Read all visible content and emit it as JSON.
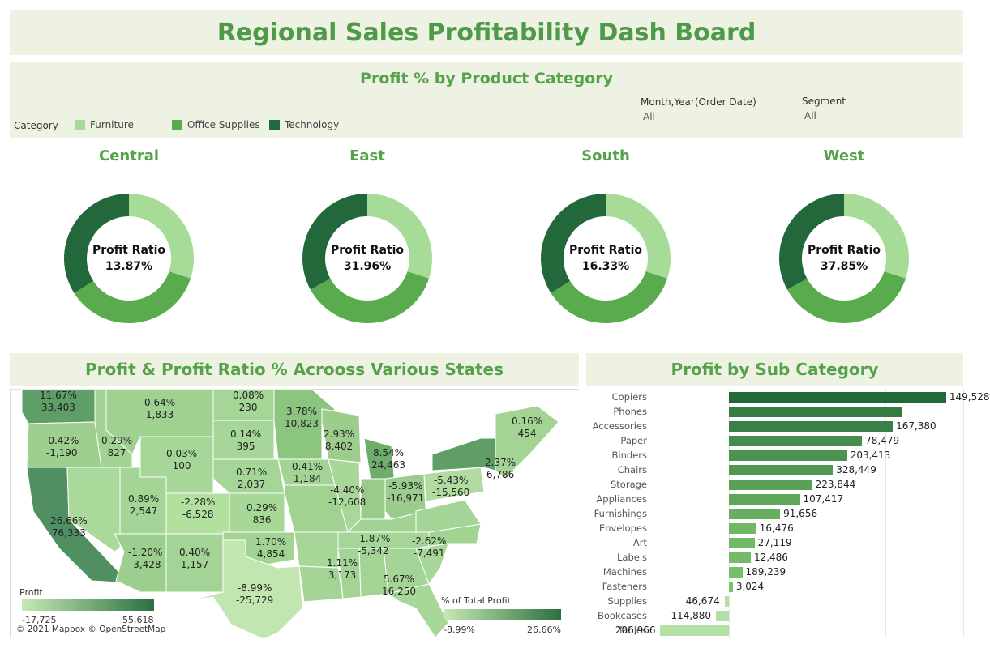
{
  "dashboard": {
    "title": "Regional Sales Profitability Dash Board"
  },
  "category_panel": {
    "title": "Profit % by Product Category",
    "legend_caption": "Category",
    "legend": [
      {
        "label": "Furniture",
        "color": "#a7dc98"
      },
      {
        "label": "Office Supplies",
        "color": "#5aab4e"
      },
      {
        "label": "Technology",
        "color": "#23683a"
      }
    ],
    "filters": [
      {
        "label": "Month,Year(Order Date)",
        "value": "All"
      },
      {
        "label": "Segment",
        "value": "All"
      }
    ]
  },
  "regions": [
    {
      "name": "Central",
      "ratio_label": "Profit Ratio",
      "ratio": "13.87%",
      "shares": [
        0.3,
        0.36,
        0.34
      ]
    },
    {
      "name": "East",
      "ratio_label": "Profit Ratio",
      "ratio": "31.96%",
      "shares": [
        0.3,
        0.37,
        0.33
      ]
    },
    {
      "name": "South",
      "ratio_label": "Profit Ratio",
      "ratio": "16.33%",
      "shares": [
        0.3,
        0.36,
        0.34
      ]
    },
    {
      "name": "West",
      "ratio_label": "Profit Ratio",
      "ratio": "37.85%",
      "shares": [
        0.3,
        0.37,
        0.33
      ]
    }
  ],
  "map_panel": {
    "title": "Profit & Profit Ratio % Acrooss Various States",
    "attribution": "© 2021 Mapbox © OpenStreetMap",
    "profit_legend": {
      "title": "Profit",
      "min": "-17,725",
      "max": "55,618"
    },
    "pct_legend": {
      "title": "% of Total Profit",
      "min": "-8.99%",
      "max": "26.66%"
    },
    "states": [
      {
        "pct": "11.67%",
        "profit": "33,403"
      },
      {
        "pct": "0.64%",
        "profit": "1,833"
      },
      {
        "pct": "0.08%",
        "profit": "230"
      },
      {
        "pct": "3.78%",
        "profit": "10,823"
      },
      {
        "pct": "0.16%",
        "profit": "454"
      },
      {
        "pct": "-0.42%",
        "profit": "-1,190"
      },
      {
        "pct": "0.29%",
        "profit": "827"
      },
      {
        "pct": "0.14%",
        "profit": "395"
      },
      {
        "pct": "2.93%",
        "profit": "8,402"
      },
      {
        "pct": "0.03%",
        "profit": "100"
      },
      {
        "pct": "0.71%",
        "profit": "2,037"
      },
      {
        "pct": "0.41%",
        "profit": "1,184"
      },
      {
        "pct": "8.54%",
        "profit": "24,463"
      },
      {
        "pct": "2.37%",
        "profit": "6,786"
      },
      {
        "pct": "-5.43%",
        "profit": "-15,560"
      },
      {
        "pct": "26.66%",
        "profit": "76,333"
      },
      {
        "pct": "0.89%",
        "profit": "2,547"
      },
      {
        "pct": "-2.28%",
        "profit": "-6,528"
      },
      {
        "pct": "0.29%",
        "profit": "836"
      },
      {
        "pct": "-4.40%",
        "profit": "-12,608"
      },
      {
        "pct": "-5.93%",
        "profit": "-16,971"
      },
      {
        "pct": "1.70%",
        "profit": "4,854"
      },
      {
        "pct": "-1.87%",
        "profit": "-5,342"
      },
      {
        "pct": "-2.62%",
        "profit": "-7,491"
      },
      {
        "pct": "-1.20%",
        "profit": "-3,428"
      },
      {
        "pct": "0.40%",
        "profit": "1,157"
      },
      {
        "pct": "1.11%",
        "profit": "3,173"
      },
      {
        "pct": "5.67%",
        "profit": "16,250"
      },
      {
        "pct": "-8.99%",
        "profit": "-25,729"
      }
    ]
  },
  "bar_panel": {
    "title": "Profit by Sub Category",
    "chart_data": {
      "type": "bar",
      "categories": [
        "Copiers",
        "Phones",
        "Accessories",
        "Paper",
        "Binders",
        "Chairs",
        "Storage",
        "Appliances",
        "Furnishings",
        "Envelopes",
        "Art",
        "Labels",
        "Machines",
        "Fasteners",
        "Supplies",
        "Bookcases",
        "Tables"
      ],
      "values": [
        55618,
        44516,
        41937,
        34054,
        30222,
        26590,
        21279,
        18138,
        13059,
        6964,
        6528,
        5546,
        3385,
        950,
        -1189,
        -3473,
        -17725
      ],
      "labels": [
        "149,528",
        "",
        "167,380",
        "78,479",
        "203,413",
        "328,449",
        "223,844",
        "107,417",
        "91,656",
        "16,476",
        "27,119",
        "12,486",
        "189,239",
        "3,024",
        "46,674",
        "114,880",
        "206,966"
      ],
      "xlim": [
        -20000,
        60000
      ]
    }
  }
}
